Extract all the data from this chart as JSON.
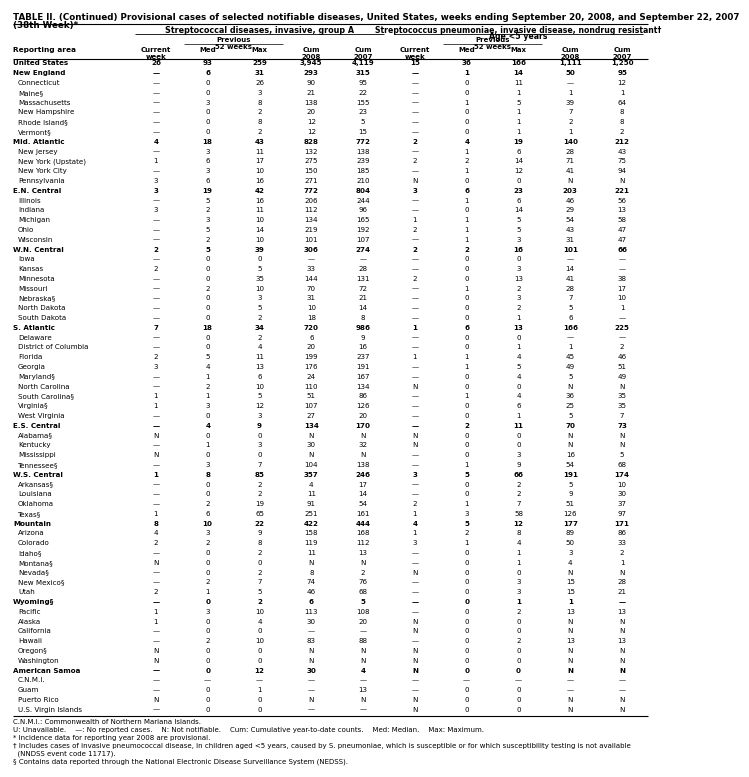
{
  "title_line1": "TABLE II. (Continued) Provisional cases of selected notifiable diseases, United States, weeks ending September 20, 2008, and September 22, 2007",
  "title_line2": "(38th Week)*",
  "col_group1": "Streptococcal diseases, invasive, group A",
  "col_group2_line1": "Streptococcus pneumoniae, invasive disease, nondrug resistant†",
  "col_group2_line2": "Age <5 years",
  "rows": [
    [
      "United States",
      "26",
      "93",
      "259",
      "3,945",
      "4,119",
      "15",
      "36",
      "166",
      "1,111",
      "1,250"
    ],
    [
      "New England",
      "—",
      "6",
      "31",
      "293",
      "315",
      "—",
      "1",
      "14",
      "50",
      "95"
    ],
    [
      "Connecticut",
      "—",
      "0",
      "26",
      "90",
      "95",
      "—",
      "0",
      "11",
      "—",
      "12"
    ],
    [
      "Maine§",
      "—",
      "0",
      "3",
      "21",
      "22",
      "—",
      "0",
      "1",
      "1",
      "1"
    ],
    [
      "Massachusetts",
      "—",
      "3",
      "8",
      "138",
      "155",
      "—",
      "1",
      "5",
      "39",
      "64"
    ],
    [
      "New Hampshire",
      "—",
      "0",
      "2",
      "20",
      "23",
      "—",
      "0",
      "1",
      "7",
      "8"
    ],
    [
      "Rhode Island§",
      "—",
      "0",
      "8",
      "12",
      "5",
      "—",
      "0",
      "1",
      "2",
      "8"
    ],
    [
      "Vermont§",
      "—",
      "0",
      "2",
      "12",
      "15",
      "—",
      "0",
      "1",
      "1",
      "2"
    ],
    [
      "Mid. Atlantic",
      "4",
      "18",
      "43",
      "828",
      "772",
      "2",
      "4",
      "19",
      "140",
      "212"
    ],
    [
      "New Jersey",
      "—",
      "3",
      "11",
      "132",
      "138",
      "—",
      "1",
      "6",
      "28",
      "43"
    ],
    [
      "New York (Upstate)",
      "1",
      "6",
      "17",
      "275",
      "239",
      "2",
      "2",
      "14",
      "71",
      "75"
    ],
    [
      "New York City",
      "—",
      "3",
      "10",
      "150",
      "185",
      "—",
      "1",
      "12",
      "41",
      "94"
    ],
    [
      "Pennsylvania",
      "3",
      "6",
      "16",
      "271",
      "210",
      "N",
      "0",
      "0",
      "N",
      "N"
    ],
    [
      "E.N. Central",
      "3",
      "19",
      "42",
      "772",
      "804",
      "3",
      "6",
      "23",
      "203",
      "221"
    ],
    [
      "Illinois",
      "—",
      "5",
      "16",
      "206",
      "244",
      "—",
      "1",
      "6",
      "46",
      "56"
    ],
    [
      "Indiana",
      "3",
      "2",
      "11",
      "112",
      "96",
      "—",
      "0",
      "14",
      "29",
      "13"
    ],
    [
      "Michigan",
      "—",
      "3",
      "10",
      "134",
      "165",
      "1",
      "1",
      "5",
      "54",
      "58"
    ],
    [
      "Ohio",
      "—",
      "5",
      "14",
      "219",
      "192",
      "2",
      "1",
      "5",
      "43",
      "47"
    ],
    [
      "Wisconsin",
      "—",
      "2",
      "10",
      "101",
      "107",
      "—",
      "1",
      "3",
      "31",
      "47"
    ],
    [
      "W.N. Central",
      "2",
      "5",
      "39",
      "306",
      "274",
      "2",
      "2",
      "16",
      "101",
      "66"
    ],
    [
      "Iowa",
      "—",
      "0",
      "0",
      "—",
      "—",
      "—",
      "0",
      "0",
      "—",
      "—"
    ],
    [
      "Kansas",
      "2",
      "0",
      "5",
      "33",
      "28",
      "—",
      "0",
      "3",
      "14",
      "—"
    ],
    [
      "Minnesota",
      "—",
      "0",
      "35",
      "144",
      "131",
      "2",
      "0",
      "13",
      "41",
      "38"
    ],
    [
      "Missouri",
      "—",
      "2",
      "10",
      "70",
      "72",
      "—",
      "1",
      "2",
      "28",
      "17"
    ],
    [
      "Nebraska§",
      "—",
      "0",
      "3",
      "31",
      "21",
      "—",
      "0",
      "3",
      "7",
      "10"
    ],
    [
      "North Dakota",
      "—",
      "0",
      "5",
      "10",
      "14",
      "—",
      "0",
      "2",
      "5",
      "1"
    ],
    [
      "South Dakota",
      "—",
      "0",
      "2",
      "18",
      "8",
      "—",
      "0",
      "1",
      "6",
      "—"
    ],
    [
      "S. Atlantic",
      "7",
      "18",
      "34",
      "720",
      "986",
      "1",
      "6",
      "13",
      "166",
      "225"
    ],
    [
      "Delaware",
      "—",
      "0",
      "2",
      "6",
      "9",
      "—",
      "0",
      "0",
      "—",
      "—"
    ],
    [
      "District of Columbia",
      "—",
      "0",
      "4",
      "20",
      "16",
      "—",
      "0",
      "1",
      "1",
      "2"
    ],
    [
      "Florida",
      "2",
      "5",
      "11",
      "199",
      "237",
      "1",
      "1",
      "4",
      "45",
      "46"
    ],
    [
      "Georgia",
      "3",
      "4",
      "13",
      "176",
      "191",
      "—",
      "1",
      "5",
      "49",
      "51"
    ],
    [
      "Maryland§",
      "—",
      "1",
      "6",
      "24",
      "167",
      "—",
      "0",
      "4",
      "5",
      "49"
    ],
    [
      "North Carolina",
      "—",
      "2",
      "10",
      "110",
      "134",
      "N",
      "0",
      "0",
      "N",
      "N"
    ],
    [
      "South Carolina§",
      "1",
      "1",
      "5",
      "51",
      "86",
      "—",
      "1",
      "4",
      "36",
      "35"
    ],
    [
      "Virginia§",
      "1",
      "3",
      "12",
      "107",
      "126",
      "—",
      "0",
      "6",
      "25",
      "35"
    ],
    [
      "West Virginia",
      "—",
      "0",
      "3",
      "27",
      "20",
      "—",
      "0",
      "1",
      "5",
      "7"
    ],
    [
      "E.S. Central",
      "—",
      "4",
      "9",
      "134",
      "170",
      "—",
      "2",
      "11",
      "70",
      "73"
    ],
    [
      "Alabama§",
      "N",
      "0",
      "0",
      "N",
      "N",
      "N",
      "0",
      "0",
      "N",
      "N"
    ],
    [
      "Kentucky",
      "—",
      "1",
      "3",
      "30",
      "32",
      "N",
      "0",
      "0",
      "N",
      "N"
    ],
    [
      "Mississippi",
      "N",
      "0",
      "0",
      "N",
      "N",
      "—",
      "0",
      "3",
      "16",
      "5"
    ],
    [
      "Tennessee§",
      "—",
      "3",
      "7",
      "104",
      "138",
      "—",
      "1",
      "9",
      "54",
      "68"
    ],
    [
      "W.S. Central",
      "1",
      "8",
      "85",
      "357",
      "246",
      "3",
      "5",
      "66",
      "191",
      "174"
    ],
    [
      "Arkansas§",
      "—",
      "0",
      "2",
      "4",
      "17",
      "—",
      "0",
      "2",
      "5",
      "10"
    ],
    [
      "Louisiana",
      "—",
      "0",
      "2",
      "11",
      "14",
      "—",
      "0",
      "2",
      "9",
      "30"
    ],
    [
      "Oklahoma",
      "—",
      "2",
      "19",
      "91",
      "54",
      "2",
      "1",
      "7",
      "51",
      "37"
    ],
    [
      "Texas§",
      "1",
      "6",
      "65",
      "251",
      "161",
      "1",
      "3",
      "58",
      "126",
      "97"
    ],
    [
      "Mountain",
      "8",
      "10",
      "22",
      "422",
      "444",
      "4",
      "5",
      "12",
      "177",
      "171"
    ],
    [
      "Arizona",
      "4",
      "3",
      "9",
      "158",
      "168",
      "1",
      "2",
      "8",
      "89",
      "86"
    ],
    [
      "Colorado",
      "2",
      "2",
      "8",
      "119",
      "112",
      "3",
      "1",
      "4",
      "50",
      "33"
    ],
    [
      "Idaho§",
      "—",
      "0",
      "2",
      "11",
      "13",
      "—",
      "0",
      "1",
      "3",
      "2"
    ],
    [
      "Montana§",
      "N",
      "0",
      "0",
      "N",
      "N",
      "—",
      "0",
      "1",
      "4",
      "1"
    ],
    [
      "Nevada§",
      "—",
      "0",
      "2",
      "8",
      "2",
      "N",
      "0",
      "0",
      "N",
      "N"
    ],
    [
      "New Mexico§",
      "—",
      "2",
      "7",
      "74",
      "76",
      "—",
      "0",
      "3",
      "15",
      "28"
    ],
    [
      "Utah",
      "2",
      "1",
      "5",
      "46",
      "68",
      "—",
      "0",
      "3",
      "15",
      "21"
    ],
    [
      "Wyoming§",
      "—",
      "0",
      "2",
      "6",
      "5",
      "—",
      "0",
      "1",
      "1",
      "—"
    ],
    [
      "Pacific",
      "1",
      "3",
      "10",
      "113",
      "108",
      "—",
      "0",
      "2",
      "13",
      "13"
    ],
    [
      "Alaska",
      "1",
      "0",
      "4",
      "30",
      "20",
      "N",
      "0",
      "0",
      "N",
      "N"
    ],
    [
      "California",
      "—",
      "0",
      "0",
      "—",
      "—",
      "N",
      "0",
      "0",
      "N",
      "N"
    ],
    [
      "Hawaii",
      "—",
      "2",
      "10",
      "83",
      "88",
      "—",
      "0",
      "2",
      "13",
      "13"
    ],
    [
      "Oregon§",
      "N",
      "0",
      "0",
      "N",
      "N",
      "N",
      "0",
      "0",
      "N",
      "N"
    ],
    [
      "Washington",
      "N",
      "0",
      "0",
      "N",
      "N",
      "N",
      "0",
      "0",
      "N",
      "N"
    ],
    [
      "American Samoa",
      "—",
      "0",
      "12",
      "30",
      "4",
      "N",
      "0",
      "0",
      "N",
      "N"
    ],
    [
      "C.N.M.I.",
      "—",
      "—",
      "—",
      "—",
      "—",
      "—",
      "—",
      "—",
      "—",
      "—"
    ],
    [
      "Guam",
      "—",
      "0",
      "1",
      "—",
      "13",
      "—",
      "0",
      "0",
      "—",
      "—"
    ],
    [
      "Puerto Rico",
      "N",
      "0",
      "0",
      "N",
      "N",
      "N",
      "0",
      "0",
      "N",
      "N"
    ],
    [
      "U.S. Virgin Islands",
      "—",
      "0",
      "0",
      "—",
      "—",
      "N",
      "0",
      "0",
      "N",
      "N"
    ]
  ],
  "bold_rows": [
    0,
    1,
    8,
    13,
    19,
    27,
    37,
    42,
    47,
    55,
    62
  ],
  "footer_lines": [
    "C.N.M.I.: Commonwealth of Northern Mariana Islands.",
    "U: Unavailable.    —: No reported cases.    N: Not notifiable.    Cum: Cumulative year-to-date counts.    Med: Median.    Max: Maximum.",
    "* Incidence data for reporting year 2008 are provisional.",
    "† Includes cases of invasive pneumococcal disease, in children aged <5 years, caused by S. pneumoniae, which is susceptible or for which susceptibility testing is not available",
    "  (NNDSS event code 11717).",
    "§ Contains data reported through the National Electronic Disease Surveillance System (NEDSS)."
  ]
}
